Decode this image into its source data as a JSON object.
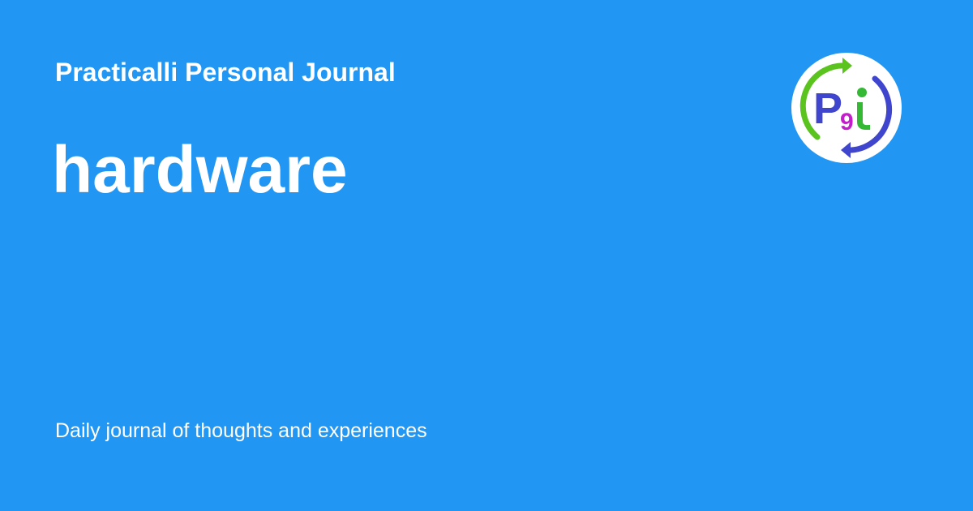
{
  "site": {
    "title": "Practicalli Personal Journal"
  },
  "page": {
    "title": "hardware"
  },
  "footer": {
    "tagline": "Daily journal of thoughts and experiences"
  },
  "logo": {
    "letters": "P9i",
    "colors": {
      "background": "#2196f3",
      "circle": "#ffffff",
      "arrow_green": "#5ac31e",
      "arrow_blue": "#3f45cc",
      "p_letter": "#3f45cc",
      "nine": "#c21ec9",
      "i_letter": "#35b833"
    }
  }
}
